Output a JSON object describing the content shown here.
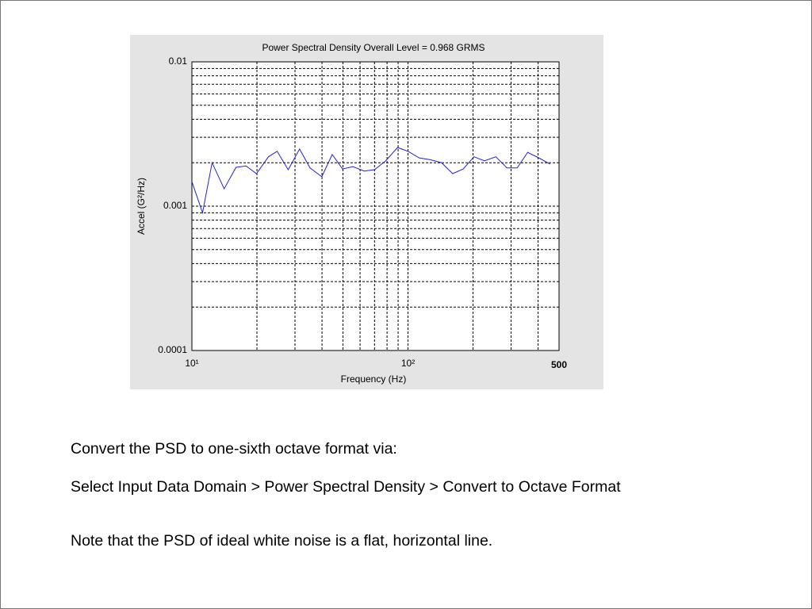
{
  "chart_data": {
    "type": "line",
    "title": "Power Spectral Density  Overall Level =  0.968 GRMS",
    "x_label": "Frequency (Hz)",
    "y_label": "Accel (G²/Hz)",
    "xlog": true,
    "ylog": true,
    "grid": true,
    "minor_grid": true,
    "xlim": [
      10,
      500
    ],
    "ylim": [
      0.0001,
      0.01
    ],
    "xticks": [
      {
        "value": 10,
        "label": "10¹"
      },
      {
        "value": 100,
        "label": "10²"
      },
      500
    ],
    "yticks": [
      0.0001,
      0.001,
      0.01
    ],
    "series": [
      {
        "name": "PSD",
        "color": "#2222cc",
        "x": [
          10,
          11.2,
          12.4,
          14.1,
          16,
          17.8,
          19.9,
          22.6,
          24.8,
          27.9,
          31.5,
          35.2,
          39.9,
          44.6,
          49.8,
          55.6,
          62.7,
          70,
          78.8,
          89.5,
          100,
          112.7,
          126.8,
          143,
          161,
          180,
          202,
          226,
          255,
          287,
          320,
          358,
          403,
          454
        ],
        "values": [
          0.00148,
          0.0009,
          0.002,
          0.00132,
          0.00186,
          0.0019,
          0.00168,
          0.0022,
          0.0024,
          0.00179,
          0.00249,
          0.00184,
          0.0016,
          0.00228,
          0.00181,
          0.00188,
          0.00175,
          0.00179,
          0.00206,
          0.00255,
          0.0024,
          0.00216,
          0.0021,
          0.002,
          0.00168,
          0.00181,
          0.0022,
          0.00206,
          0.0022,
          0.00184,
          0.00184,
          0.00236,
          0.00216,
          0.00196
        ]
      }
    ]
  },
  "body": [
    "Convert the PSD to one-sixth octave format via:",
    "Select Input Data Domain > Power Spectral Density > Convert to Octave Format",
    "Note that the PSD of ideal white noise is a flat, horizontal line."
  ]
}
